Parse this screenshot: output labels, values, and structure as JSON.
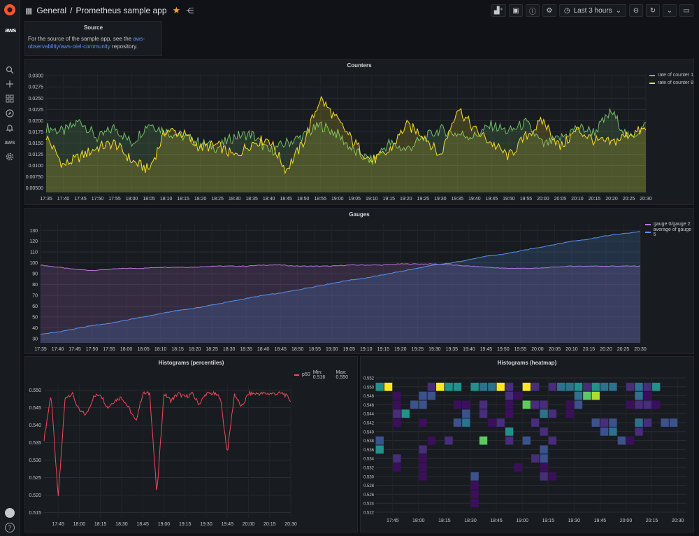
{
  "topbar": {
    "breadcrumb_folder": "General",
    "breadcrumb_sep": "/",
    "dashboard_title": "Prometheus sample app",
    "time_range": "Last 3 hours"
  },
  "sidebar": {
    "aws_label": "aws",
    "help_glyph": "?"
  },
  "source_panel": {
    "title": "Source",
    "text_before": "For the source of the sample app, see the ",
    "link_text": "aws-observability/aws-otel-community",
    "text_after": " repository."
  },
  "counters_panel": {
    "title": "Counters",
    "legend": [
      {
        "name": "rate of counter 1",
        "color": "#73bf69"
      },
      {
        "name": "rate of counter 8",
        "color": "#fade2a"
      }
    ],
    "y_ticks": [
      "0.0300",
      "0.0275",
      "0.0250",
      "0.0225",
      "0.0200",
      "0.0175",
      "0.0150",
      "0.0125",
      "0.0100",
      "0.00750",
      "0.00500"
    ],
    "x_ticks": [
      "17:35",
      "17:40",
      "17:45",
      "17:50",
      "17:55",
      "18:00",
      "18:05",
      "18:10",
      "18:15",
      "18:20",
      "18:25",
      "18:30",
      "18:35",
      "18:40",
      "18:45",
      "18:50",
      "18:55",
      "19:00",
      "19:05",
      "19:10",
      "19:15",
      "19:20",
      "19:25",
      "19:30",
      "19:35",
      "19:40",
      "19:45",
      "19:50",
      "19:55",
      "20:00",
      "20:05",
      "20:10",
      "20:15",
      "20:20",
      "20:25",
      "20:30"
    ]
  },
  "gauges_panel": {
    "title": "Gauges",
    "legend": [
      {
        "name": "gauge 0/gauge 2",
        "color": "#b877d9"
      },
      {
        "name": "average of gauge 5",
        "color": "#5794f2"
      }
    ],
    "y_ticks": [
      "130",
      "120",
      "110",
      "100",
      "90",
      "80",
      "70",
      "60",
      "50",
      "40",
      "30"
    ],
    "x_ticks": [
      "17:35",
      "17:40",
      "17:45",
      "17:50",
      "17:55",
      "18:00",
      "18:05",
      "18:10",
      "18:15",
      "18:20",
      "18:25",
      "18:30",
      "18:35",
      "18:40",
      "18:45",
      "18:50",
      "18:55",
      "19:00",
      "19:05",
      "19:10",
      "19:15",
      "19:20",
      "19:25",
      "19:30",
      "19:35",
      "19:40",
      "19:45",
      "19:50",
      "19:55",
      "20:00",
      "20:05",
      "20:10",
      "20:15",
      "20:20",
      "20:25",
      "20:30"
    ]
  },
  "percentiles_panel": {
    "title": "Histograms (percentiles)",
    "legend_name": "p50",
    "legend_color": "#f2495c",
    "legend_min": "Min: 0.516",
    "legend_max": "Max: 0.550",
    "y_ticks": [
      "0.550",
      "0.545",
      "0.540",
      "0.535",
      "0.530",
      "0.525",
      "0.520",
      "0.515"
    ],
    "x_ticks": [
      "17:45",
      "18:00",
      "18:15",
      "18:30",
      "18:45",
      "19:00",
      "19:15",
      "19:30",
      "19:45",
      "20:00",
      "20:15",
      "20:30"
    ]
  },
  "heatmap_panel": {
    "title": "Histograms (heatmap)",
    "y_ticks": [
      "0.552",
      "0.550",
      "0.548",
      "0.546",
      "0.544",
      "0.542",
      "0.540",
      "0.538",
      "0.536",
      "0.534",
      "0.532",
      "0.530",
      "0.528",
      "0.526",
      "0.524",
      "0.522"
    ],
    "x_ticks": [
      "17:45",
      "18:00",
      "18:15",
      "18:30",
      "18:45",
      "19:00",
      "19:15",
      "19:30",
      "19:45",
      "20:00",
      "20:15",
      "20:30"
    ]
  },
  "chart_data": [
    {
      "type": "area",
      "title": "Counters",
      "ylim": [
        0.004,
        0.0305
      ],
      "x": [
        "17:35",
        "17:40",
        "17:45",
        "17:50",
        "17:55",
        "18:00",
        "18:05",
        "18:10",
        "18:15",
        "18:20",
        "18:25",
        "18:30",
        "18:35",
        "18:40",
        "18:45",
        "18:50",
        "18:55",
        "19:00",
        "19:05",
        "19:10",
        "19:15",
        "19:20",
        "19:25",
        "19:30",
        "19:35",
        "19:40",
        "19:45",
        "19:50",
        "19:55",
        "20:00",
        "20:05",
        "20:10",
        "20:15",
        "20:20",
        "20:25",
        "20:30"
      ],
      "series": [
        {
          "name": "rate of counter 1",
          "color": "#73bf69",
          "values": [
            0.0185,
            0.0175,
            0.02,
            0.016,
            0.0185,
            0.015,
            0.0195,
            0.0175,
            0.0165,
            0.015,
            0.014,
            0.0165,
            0.017,
            0.013,
            0.015,
            0.0165,
            0.019,
            0.017,
            0.013,
            0.011,
            0.015,
            0.0135,
            0.016,
            0.018,
            0.017,
            0.0165,
            0.019,
            0.0175,
            0.0195,
            0.0145,
            0.016,
            0.0185,
            0.0175,
            0.022,
            0.016,
            0.019
          ]
        },
        {
          "name": "rate of counter 8",
          "color": "#fade2a",
          "values": [
            0.0165,
            0.01,
            0.012,
            0.014,
            0.015,
            0.011,
            0.009,
            0.018,
            0.017,
            0.014,
            0.0145,
            0.012,
            0.015,
            0.016,
            0.009,
            0.015,
            0.025,
            0.02,
            0.015,
            0.011,
            0.013,
            0.019,
            0.017,
            0.012,
            0.023,
            0.018,
            0.015,
            0.012,
            0.0165,
            0.02,
            0.014,
            0.018,
            0.0155,
            0.015,
            0.017,
            0.018
          ]
        }
      ]
    },
    {
      "type": "area",
      "title": "Gauges",
      "ylim": [
        26,
        136
      ],
      "x": [
        "17:35",
        "17:40",
        "17:45",
        "17:50",
        "17:55",
        "18:00",
        "18:05",
        "18:10",
        "18:15",
        "18:20",
        "18:25",
        "18:30",
        "18:35",
        "18:40",
        "18:45",
        "18:50",
        "18:55",
        "19:00",
        "19:05",
        "19:10",
        "19:15",
        "19:20",
        "19:25",
        "19:30",
        "19:35",
        "19:40",
        "19:45",
        "19:50",
        "19:55",
        "20:00",
        "20:05",
        "20:10",
        "20:15",
        "20:20",
        "20:25",
        "20:30"
      ],
      "series": [
        {
          "name": "gauge 0/gauge 2",
          "color": "#b877d9",
          "values": [
            98,
            96,
            94,
            93,
            94,
            95,
            95,
            96,
            96,
            96,
            97,
            97,
            97,
            98,
            98,
            97,
            97,
            97,
            98,
            98,
            98,
            99,
            99,
            99,
            98,
            97,
            96,
            95,
            95,
            95,
            96,
            97,
            97,
            97,
            97,
            97
          ]
        },
        {
          "name": "average of gauge 5",
          "color": "#5794f2",
          "values": [
            34,
            36,
            39,
            42,
            44,
            47,
            50,
            53,
            56,
            58,
            61,
            64,
            67,
            70,
            72,
            75,
            78,
            81,
            84,
            86,
            89,
            92,
            95,
            98,
            100,
            103,
            106,
            108,
            111,
            114,
            117,
            120,
            122,
            125,
            127,
            129
          ]
        }
      ]
    },
    {
      "type": "line",
      "title": "Histograms (percentiles)",
      "ylim": [
        0.5135,
        0.5515
      ],
      "x": [
        "17:35",
        "17:40",
        "17:45",
        "17:50",
        "17:55",
        "18:00",
        "18:05",
        "18:10",
        "18:15",
        "18:20",
        "18:25",
        "18:30",
        "18:35",
        "18:40",
        "18:45",
        "18:50",
        "18:55",
        "19:00",
        "19:05",
        "19:10",
        "19:15",
        "19:20",
        "19:25",
        "19:30",
        "19:35",
        "19:40",
        "19:45",
        "19:50",
        "19:55",
        "20:00",
        "20:05",
        "20:10",
        "20:15",
        "20:20",
        "20:25",
        "20:30"
      ],
      "series": [
        {
          "name": "p50",
          "color": "#f2495c",
          "values": [
            0.536,
            0.549,
            0.519,
            0.548,
            0.549,
            0.544,
            0.543,
            0.548,
            0.549,
            0.545,
            0.547,
            0.548,
            0.545,
            0.541,
            0.549,
            0.549,
            0.52,
            0.549,
            0.547,
            0.549,
            0.548,
            0.549,
            0.546,
            0.549,
            0.549,
            0.548,
            0.532,
            0.549,
            0.545,
            0.549,
            0.549,
            0.549,
            0.549,
            0.549,
            0.549,
            0.547
          ]
        }
      ]
    },
    {
      "type": "heatmap",
      "title": "Histograms (heatmap)",
      "ylim": [
        0.522,
        0.552
      ],
      "x": [
        "17:45",
        "18:00",
        "18:15",
        "18:30",
        "18:45",
        "19:00",
        "19:15",
        "19:30",
        "19:45",
        "20:00",
        "20:15",
        "20:30"
      ],
      "cells": [
        {
          "x": "17:35",
          "y": 0.55,
          "level": 0.6
        },
        {
          "x": "17:40",
          "y": 0.55,
          "level": 1.0
        },
        {
          "x": "18:05",
          "y": 0.55,
          "level": 0.3
        },
        {
          "x": "18:10",
          "y": 0.55,
          "level": 1.0
        },
        {
          "x": "18:15",
          "y": 0.55,
          "level": 0.6
        },
        {
          "x": "18:20",
          "y": 0.55,
          "level": 0.6
        },
        {
          "x": "18:30",
          "y": 0.55,
          "level": 0.6
        },
        {
          "x": "18:35",
          "y": 0.55,
          "level": 0.5
        },
        {
          "x": "18:40",
          "y": 0.55,
          "level": 0.5
        },
        {
          "x": "18:45",
          "y": 0.55,
          "level": 1.0
        },
        {
          "x": "18:50",
          "y": 0.55,
          "level": 0.3
        },
        {
          "x": "19:00",
          "y": 0.55,
          "level": 1.0
        },
        {
          "x": "19:05",
          "y": 0.55,
          "level": 0.3
        },
        {
          "x": "19:15",
          "y": 0.55,
          "level": 0.3
        },
        {
          "x": "19:20",
          "y": 0.55,
          "level": 0.5
        },
        {
          "x": "19:25",
          "y": 0.55,
          "level": 0.5
        },
        {
          "x": "19:30",
          "y": 0.55,
          "level": 0.6
        },
        {
          "x": "19:35",
          "y": 0.55,
          "level": 0.3
        },
        {
          "x": "19:40",
          "y": 0.55,
          "level": 0.6
        },
        {
          "x": "19:45",
          "y": 0.55,
          "level": 0.5
        },
        {
          "x": "19:50",
          "y": 0.55,
          "level": 0.5
        },
        {
          "x": "20:00",
          "y": 0.55,
          "level": 0.3
        },
        {
          "x": "20:05",
          "y": 0.55,
          "level": 0.5
        },
        {
          "x": "20:10",
          "y": 0.55,
          "level": 0.3
        },
        {
          "x": "20:15",
          "y": 0.55,
          "level": 0.6
        },
        {
          "x": "17:45",
          "y": 0.548,
          "level": 0.2
        },
        {
          "x": "18:00",
          "y": 0.548,
          "level": 0.4
        },
        {
          "x": "18:05",
          "y": 0.548,
          "level": 0.4
        },
        {
          "x": "18:50",
          "y": 0.548,
          "level": 0.3
        },
        {
          "x": "18:55",
          "y": 0.548,
          "level": 0.2
        },
        {
          "x": "19:30",
          "y": 0.548,
          "level": 0.5
        },
        {
          "x": "19:35",
          "y": 0.548,
          "level": 0.8
        },
        {
          "x": "19:40",
          "y": 0.548,
          "level": 0.9
        },
        {
          "x": "20:05",
          "y": 0.548,
          "level": 0.5
        },
        {
          "x": "20:10",
          "y": 0.548,
          "level": 0.2
        },
        {
          "x": "17:45",
          "y": 0.546,
          "level": 0.2
        },
        {
          "x": "17:55",
          "y": 0.546,
          "level": 0.4
        },
        {
          "x": "18:00",
          "y": 0.546,
          "level": 0.4
        },
        {
          "x": "18:20",
          "y": 0.546,
          "level": 0.2
        },
        {
          "x": "18:25",
          "y": 0.546,
          "level": 0.2
        },
        {
          "x": "18:35",
          "y": 0.546,
          "level": 0.3
        },
        {
          "x": "18:50",
          "y": 0.546,
          "level": 0.2
        },
        {
          "x": "19:00",
          "y": 0.546,
          "level": 0.8
        },
        {
          "x": "19:05",
          "y": 0.546,
          "level": 0.3
        },
        {
          "x": "19:10",
          "y": 0.546,
          "level": 0.3
        },
        {
          "x": "19:25",
          "y": 0.546,
          "level": 0.2
        },
        {
          "x": "19:30",
          "y": 0.546,
          "level": 0.4
        },
        {
          "x": "20:00",
          "y": 0.546,
          "level": 0.2
        },
        {
          "x": "20:05",
          "y": 0.546,
          "level": 0.3
        },
        {
          "x": "20:10",
          "y": 0.546,
          "level": 0.3
        },
        {
          "x": "20:15",
          "y": 0.546,
          "level": 0.2
        },
        {
          "x": "17:45",
          "y": 0.544,
          "level": 0.3
        },
        {
          "x": "17:50",
          "y": 0.544,
          "level": 0.6
        },
        {
          "x": "18:25",
          "y": 0.544,
          "level": 0.4
        },
        {
          "x": "18:35",
          "y": 0.544,
          "level": 0.3
        },
        {
          "x": "18:50",
          "y": 0.544,
          "level": 0.2
        },
        {
          "x": "19:10",
          "y": 0.544,
          "level": 0.5
        },
        {
          "x": "19:15",
          "y": 0.544,
          "level": 0.3
        },
        {
          "x": "19:25",
          "y": 0.544,
          "level": 0.2
        },
        {
          "x": "17:45",
          "y": 0.542,
          "level": 0.2
        },
        {
          "x": "18:00",
          "y": 0.542,
          "level": 0.2
        },
        {
          "x": "18:20",
          "y": 0.542,
          "level": 0.4
        },
        {
          "x": "18:25",
          "y": 0.542,
          "level": 0.5
        },
        {
          "x": "18:40",
          "y": 0.542,
          "level": 0.2
        },
        {
          "x": "18:45",
          "y": 0.542,
          "level": 0.3
        },
        {
          "x": "19:05",
          "y": 0.542,
          "level": 0.3
        },
        {
          "x": "19:40",
          "y": 0.542,
          "level": 0.4
        },
        {
          "x": "19:45",
          "y": 0.542,
          "level": 0.3
        },
        {
          "x": "19:50",
          "y": 0.542,
          "level": 0.4
        },
        {
          "x": "20:05",
          "y": 0.542,
          "level": 0.5
        },
        {
          "x": "20:10",
          "y": 0.542,
          "level": 0.3
        },
        {
          "x": "20:20",
          "y": 0.542,
          "level": 0.4
        },
        {
          "x": "20:25",
          "y": 0.542,
          "level": 0.4
        },
        {
          "x": "18:50",
          "y": 0.54,
          "level": 0.6
        },
        {
          "x": "19:10",
          "y": 0.54,
          "level": 0.3
        },
        {
          "x": "19:45",
          "y": 0.54,
          "level": 0.4
        },
        {
          "x": "19:50",
          "y": 0.54,
          "level": 0.5
        },
        {
          "x": "20:05",
          "y": 0.54,
          "level": 0.3
        },
        {
          "x": "17:35",
          "y": 0.538,
          "level": 0.4
        },
        {
          "x": "18:05",
          "y": 0.538,
          "level": 0.2
        },
        {
          "x": "18:15",
          "y": 0.538,
          "level": 0.3
        },
        {
          "x": "18:35",
          "y": 0.538,
          "level": 0.8
        },
        {
          "x": "18:50",
          "y": 0.538,
          "level": 0.3
        },
        {
          "x": "19:00",
          "y": 0.538,
          "level": 0.4
        },
        {
          "x": "19:15",
          "y": 0.538,
          "level": 0.3
        },
        {
          "x": "19:55",
          "y": 0.538,
          "level": 0.4
        },
        {
          "x": "20:00",
          "y": 0.538,
          "level": 0.2
        },
        {
          "x": "17:35",
          "y": 0.536,
          "level": 0.6
        },
        {
          "x": "18:00",
          "y": 0.536,
          "level": 0.3
        },
        {
          "x": "19:10",
          "y": 0.536,
          "level": 0.4
        },
        {
          "x": "17:45",
          "y": 0.534,
          "level": 0.3
        },
        {
          "x": "18:00",
          "y": 0.534,
          "level": 0.2
        },
        {
          "x": "19:05",
          "y": 0.534,
          "level": 0.3
        },
        {
          "x": "19:10",
          "y": 0.534,
          "level": 0.4
        },
        {
          "x": "17:45",
          "y": 0.532,
          "level": 0.2
        },
        {
          "x": "18:00",
          "y": 0.532,
          "level": 0.2
        },
        {
          "x": "18:55",
          "y": 0.532,
          "level": 0.2
        },
        {
          "x": "19:10",
          "y": 0.532,
          "level": 0.2
        },
        {
          "x": "18:00",
          "y": 0.53,
          "level": 0.2
        },
        {
          "x": "18:30",
          "y": 0.53,
          "level": 0.4
        },
        {
          "x": "19:10",
          "y": 0.53,
          "level": 0.3
        },
        {
          "x": "19:15",
          "y": 0.53,
          "level": 0.2
        },
        {
          "x": "18:30",
          "y": 0.528,
          "level": 0.2
        },
        {
          "x": "18:30",
          "y": 0.526,
          "level": 0.2
        },
        {
          "x": "18:30",
          "y": 0.524,
          "level": 0.2
        }
      ]
    }
  ]
}
